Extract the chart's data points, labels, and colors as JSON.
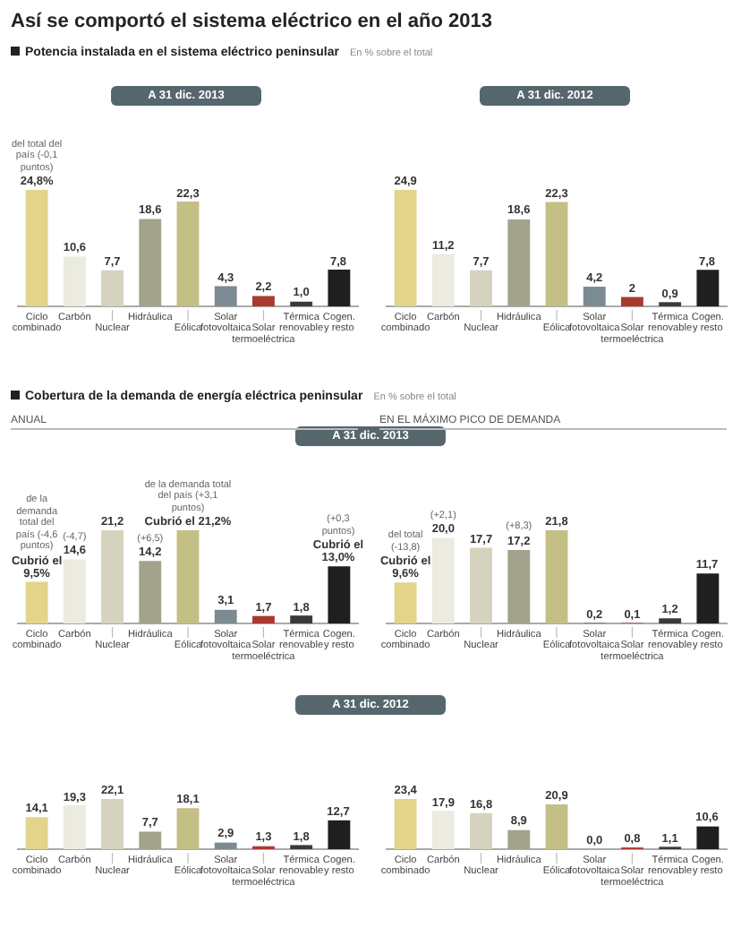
{
  "chart_data": [
    {
      "type": "bar",
      "title": "A 31 dic. 2013",
      "annotations": [
        "Así se comportó el sistema eléctrico en el año 2013",
        "Potencia instalada en el sistema eléctrico peninsular",
        "En % sobre el total",
        {
          "text": "del total del país (-0,1 puntos)",
          "x": "Ciclo combinado",
          "y": 24.8
        }
      ],
      "categories": [
        "Ciclo combinado",
        "Carbón",
        "Nuclear",
        "Hidráulica",
        "Eólica",
        "Solar fotovoltaica",
        "Solar termoeléctrica",
        "Térmica renovable",
        "Cogen. y resto"
      ],
      "values": [
        24.8,
        10.6,
        7.7,
        18.6,
        22.3,
        4.3,
        2.2,
        1.0,
        7.8
      ],
      "value_labels": [
        "24,8%",
        "10,6",
        "7,7",
        "18,6",
        "22,3",
        "4,3",
        "2,2",
        "1,0",
        "7,8"
      ],
      "colors": [
        "#e2d58b",
        "#ecebdf",
        "#d5d3bd",
        "#a3a28c",
        "#c3bf85",
        "#7c8b92",
        "#a83a30",
        "#3a3a3a",
        "#1f1f1f"
      ]
    },
    {
      "type": "bar",
      "title": "A 31 dic. 2012",
      "categories": [
        "Ciclo combinado",
        "Carbón",
        "Nuclear",
        "Hidráulica",
        "Eólica",
        "Solar fotovoltaica",
        "Solar termoeléctrica",
        "Térmica renovable",
        "Cogen. y resto"
      ],
      "values": [
        24.9,
        11.2,
        7.7,
        18.6,
        22.3,
        4.2,
        2,
        0.9,
        7.8
      ],
      "value_labels": [
        "24,9",
        "11,2",
        "7,7",
        "18,6",
        "22,3",
        "4,2",
        "2",
        "0,9",
        "7,8"
      ],
      "colors": [
        "#e2d58b",
        "#ecebdf",
        "#d5d3bd",
        "#a3a28c",
        "#c3bf85",
        "#7c8b92",
        "#a83a30",
        "#3a3a3a",
        "#1f1f1f"
      ]
    },
    {
      "type": "bar",
      "title": "A 31 dic. 2013",
      "subtitle": "ANUAL",
      "annotations": [
        "Cobertura de la demanda de energía eléctrica peninsular",
        "En % sobre el total",
        {
          "text": "de la demanda total del país (-4,6 puntos)",
          "x": "Ciclo combinado",
          "y": 9.5
        },
        {
          "text": "(-4,7)",
          "x": "Carbón",
          "y": 14.6
        },
        {
          "text": "(+6,5)",
          "x": "Hidráulica",
          "y": 14.2
        },
        {
          "text": "de la demanda total del país (+3,1 puntos)",
          "x": "Eólica",
          "y": 21.2
        },
        {
          "text": "(+0,3 puntos)",
          "x": "Cogen. y resto",
          "y": 13.0
        }
      ],
      "categories": [
        "Ciclo combinado",
        "Carbón",
        "Nuclear",
        "Hidráulica",
        "Eólica",
        "Solar fotovoltaica",
        "Solar termoeléctrica",
        "Térmica renovable",
        "Cogen. y resto"
      ],
      "values": [
        9.5,
        14.6,
        21.2,
        14.2,
        21.2,
        3.1,
        1.7,
        1.8,
        13.0
      ],
      "value_labels": [
        "Cubrió el 9,5%",
        "14,6",
        "21,2",
        "14,2",
        "Cubrió el 21,2%",
        "3,1",
        "1,7",
        "1,8",
        "Cubrió el 13,0%"
      ],
      "colors": [
        "#e2d58b",
        "#ecebdf",
        "#d5d3bd",
        "#a3a28c",
        "#c3bf85",
        "#7c8b92",
        "#a83a30",
        "#3a3a3a",
        "#1f1f1f"
      ]
    },
    {
      "type": "bar",
      "subtitle": "EN EL MÁXIMO PICO DE DEMANDA",
      "annotations": [
        {
          "text": "del total (-13,8)",
          "x": "Ciclo combinado",
          "y": 9.6
        },
        {
          "text": "(+2,1)",
          "x": "Carbón",
          "y": 20.0
        },
        {
          "text": "(+8,3)",
          "x": "Hidráulica",
          "y": 17.2
        }
      ],
      "categories": [
        "Ciclo combinado",
        "Carbón",
        "Nuclear",
        "Hidráulica",
        "Eólica",
        "Solar fotovoltaica",
        "Solar termoeléctrica",
        "Térmica renovable",
        "Cogen. y resto"
      ],
      "values": [
        9.6,
        20.0,
        17.7,
        17.2,
        21.8,
        0.2,
        0.1,
        1.2,
        11.7
      ],
      "value_labels": [
        "Cubrió el 9,6%",
        "20,0",
        "17,7",
        "17,2",
        "21,8",
        "0,2",
        "0,1",
        "1,2",
        "11,7"
      ],
      "colors": [
        "#e2d58b",
        "#ecebdf",
        "#d5d3bd",
        "#a3a28c",
        "#c3bf85",
        "#7c8b92",
        "#a83a30",
        "#3a3a3a",
        "#1f1f1f"
      ]
    },
    {
      "type": "bar",
      "title": "A 31 dic. 2012",
      "categories": [
        "Ciclo combinado",
        "Carbón",
        "Nuclear",
        "Hidráulica",
        "Eólica",
        "Solar fotovoltaica",
        "Solar termoeléctrica",
        "Térmica renovable",
        "Cogen. y resto"
      ],
      "values": [
        14.1,
        19.3,
        22.1,
        7.7,
        18.1,
        2.9,
        1.3,
        1.8,
        12.7
      ],
      "value_labels": [
        "14,1",
        "19,3",
        "22,1",
        "7,7",
        "18,1",
        "2,9",
        "1,3",
        "1,8",
        "12,7"
      ],
      "colors": [
        "#e2d58b",
        "#ecebdf",
        "#d5d3bd",
        "#a3a28c",
        "#c3bf85",
        "#7c8b92",
        "#a83a30",
        "#3a3a3a",
        "#1f1f1f"
      ]
    },
    {
      "type": "bar",
      "categories": [
        "Ciclo combinado",
        "Carbón",
        "Nuclear",
        "Hidráulica",
        "Eólica",
        "Solar fotovoltaica",
        "Solar termoeléctrica",
        "Térmica renovable",
        "Cogen. y resto"
      ],
      "values": [
        23.4,
        17.9,
        16.8,
        8.9,
        20.9,
        0.0,
        0.8,
        1.1,
        10.6
      ],
      "value_labels": [
        "23,4",
        "17,9",
        "16,8",
        "8,9",
        "20,9",
        "0,0",
        "0,8",
        "1,1",
        "10,6"
      ],
      "colors": [
        "#e2d58b",
        "#ecebdf",
        "#d5d3bd",
        "#a3a28c",
        "#c3bf85",
        "#7c8b92",
        "#a83a30",
        "#3a3a3a",
        "#1f1f1f"
      ]
    }
  ]
}
